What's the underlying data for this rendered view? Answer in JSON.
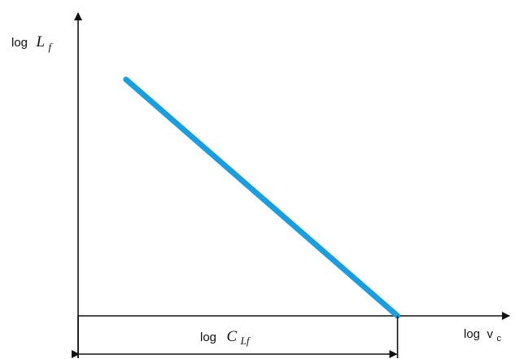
{
  "chart_data": {
    "type": "line",
    "ylabel": {
      "prefix": "log",
      "symbol": "L",
      "subscript": "f"
    },
    "xlabel": {
      "prefix": "log",
      "symbol": "v",
      "subscript": "c"
    },
    "dimension_label": {
      "prefix": "log",
      "symbol": "C",
      "subscript": "Lf"
    },
    "series": [
      {
        "color": "#1a9ee0",
        "x": [
          0.15,
          1.0
        ],
        "y": [
          0.88,
          0.0
        ]
      }
    ],
    "xlim": [
      0,
      1.35
    ],
    "ylim": [
      0,
      1.0
    ],
    "grid": false,
    "ticks": false
  }
}
